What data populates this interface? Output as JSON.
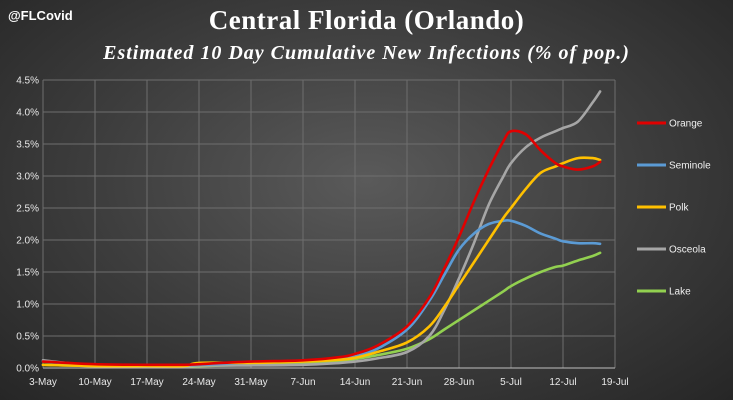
{
  "header": {
    "handle": "@FLCovid",
    "title": "Central Florida (Orlando)",
    "subtitle": "Estimated 10 Day Cumulative New Infections (% of pop.)"
  },
  "chart_data": {
    "type": "line",
    "title": "Central Florida (Orlando)",
    "subtitle": "Estimated 10 Day Cumulative New Infections (% of pop.)",
    "xlabel": "",
    "ylabel": "",
    "x_ticks": [
      "3-May",
      "10-May",
      "17-May",
      "24-May",
      "31-May",
      "7-Jun",
      "14-Jun",
      "21-Jun",
      "28-Jun",
      "5-Jul",
      "12-Jul",
      "19-Jul"
    ],
    "y_ticks": [
      "0.0%",
      "0.5%",
      "1.0%",
      "1.5%",
      "2.0%",
      "2.5%",
      "3.0%",
      "3.5%",
      "4.0%",
      "4.5%"
    ],
    "ylim": [
      0,
      4.5
    ],
    "y_unit": "%",
    "x_start": "3-May",
    "x_end": "19-Jul",
    "grid": true,
    "legend_position": "right",
    "x_dates": [
      "3-May",
      "10-May",
      "17-May",
      "22-May",
      "24-May",
      "31-May",
      "7-Jun",
      "12-Jun",
      "14-Jun",
      "17-Jun",
      "21-Jun",
      "24-Jun",
      "26-Jun",
      "28-Jun",
      "30-Jun",
      "2-Jul",
      "4-Jul",
      "5-Jul",
      "7-Jul",
      "9-Jul",
      "11-Jul",
      "12-Jul",
      "14-Jul",
      "16-Jul",
      "17-Jul"
    ],
    "series": [
      {
        "name": "Orange",
        "color": "#e00000",
        "values": [
          0.1,
          0.06,
          0.05,
          0.05,
          0.06,
          0.1,
          0.12,
          0.17,
          0.22,
          0.35,
          0.65,
          1.1,
          1.55,
          2.05,
          2.6,
          3.1,
          3.55,
          3.7,
          3.65,
          3.4,
          3.2,
          3.15,
          3.1,
          3.15,
          3.22
        ]
      },
      {
        "name": "Seminole",
        "color": "#5b9bd5",
        "values": [
          0.1,
          0.05,
          0.05,
          0.05,
          0.05,
          0.08,
          0.1,
          0.15,
          0.18,
          0.3,
          0.6,
          1.05,
          1.45,
          1.85,
          2.1,
          2.25,
          2.3,
          2.3,
          2.22,
          2.1,
          2.02,
          1.98,
          1.95,
          1.95,
          1.94
        ]
      },
      {
        "name": "Polk",
        "color": "#ffc000",
        "values": [
          0.05,
          0.03,
          0.03,
          0.03,
          0.08,
          0.08,
          0.1,
          0.13,
          0.16,
          0.25,
          0.4,
          0.65,
          0.95,
          1.3,
          1.65,
          2.0,
          2.35,
          2.5,
          2.8,
          3.05,
          3.15,
          3.2,
          3.28,
          3.28,
          3.25
        ]
      },
      {
        "name": "Osceola",
        "color": "#a6a6a6",
        "values": [
          0.12,
          0.04,
          0.03,
          0.03,
          0.04,
          0.04,
          0.05,
          0.08,
          0.1,
          0.15,
          0.25,
          0.5,
          0.9,
          1.4,
          1.95,
          2.55,
          3.0,
          3.2,
          3.45,
          3.6,
          3.7,
          3.75,
          3.85,
          4.15,
          4.32
        ]
      },
      {
        "name": "Lake",
        "color": "#92d050",
        "values": [
          0.05,
          0.03,
          0.03,
          0.03,
          0.03,
          0.05,
          0.07,
          0.1,
          0.14,
          0.2,
          0.3,
          0.45,
          0.6,
          0.75,
          0.9,
          1.05,
          1.2,
          1.28,
          1.4,
          1.5,
          1.58,
          1.6,
          1.68,
          1.75,
          1.8
        ]
      }
    ]
  }
}
